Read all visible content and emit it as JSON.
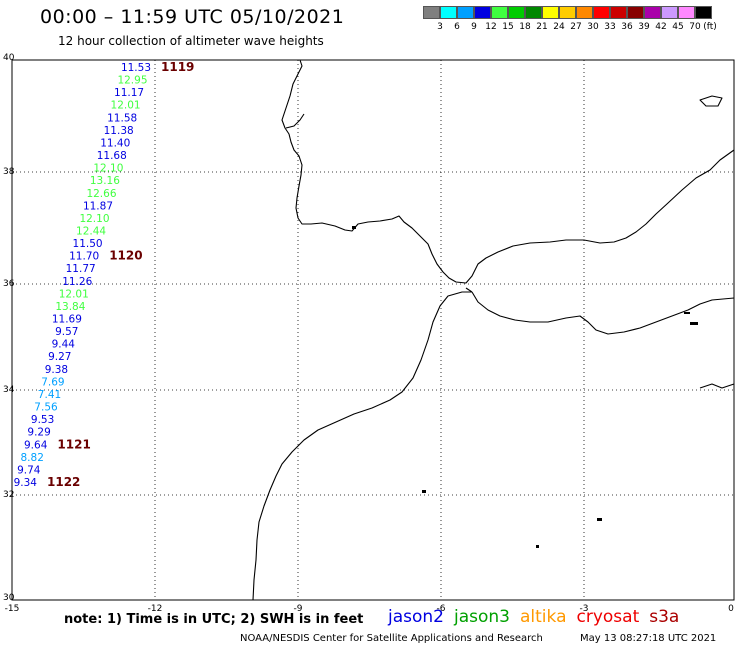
{
  "header": {
    "title": "00:00 – 11:59 UTC 05/10/2021",
    "subtitle": "12 hour collection of altimeter wave heights"
  },
  "colorbar": {
    "unit": "(ft)",
    "bins": [
      {
        "label": "3",
        "color": "#7f7f7f"
      },
      {
        "label": "6",
        "color": "#00ffff"
      },
      {
        "label": "9",
        "color": "#00a0ff"
      },
      {
        "label": "12",
        "color": "#0000e0"
      },
      {
        "label": "15",
        "color": "#40ff40"
      },
      {
        "label": "18",
        "color": "#00cc00"
      },
      {
        "label": "21",
        "color": "#008800"
      },
      {
        "label": "24",
        "color": "#ffff00"
      },
      {
        "label": "27",
        "color": "#ffcc00"
      },
      {
        "label": "30",
        "color": "#ff8800"
      },
      {
        "label": "33",
        "color": "#ff0000"
      },
      {
        "label": "36",
        "color": "#cc0000"
      },
      {
        "label": "39",
        "color": "#880000"
      },
      {
        "label": "42",
        "color": "#aa00aa"
      },
      {
        "label": "45",
        "color": "#cc99ff"
      },
      {
        "label": "70",
        "color": "#ff88ff"
      },
      {
        "label": "",
        "color": "#000000"
      }
    ]
  },
  "axes": {
    "lon_ticks": [
      "-15",
      "-12",
      "-9",
      "-6",
      "-3",
      "0"
    ],
    "lat_ticks": [
      "40",
      "38",
      "36",
      "34",
      "32",
      "30"
    ],
    "lon_range": [
      -15,
      0
    ],
    "lat_range": [
      30,
      40
    ]
  },
  "track": {
    "values": [
      {
        "v": "11.53",
        "c": "#0000e0"
      },
      {
        "v": "12.95",
        "c": "#40ff40"
      },
      {
        "v": "11.17",
        "c": "#0000e0"
      },
      {
        "v": "12.01",
        "c": "#40ff40"
      },
      {
        "v": "11.58",
        "c": "#0000e0"
      },
      {
        "v": "11.38",
        "c": "#0000e0"
      },
      {
        "v": "11.40",
        "c": "#0000e0"
      },
      {
        "v": "11.68",
        "c": "#0000e0"
      },
      {
        "v": "12.10",
        "c": "#40ff40"
      },
      {
        "v": "13.16",
        "c": "#40ff40"
      },
      {
        "v": "12.66",
        "c": "#40ff40"
      },
      {
        "v": "11.87",
        "c": "#0000e0"
      },
      {
        "v": "12.10",
        "c": "#40ff40"
      },
      {
        "v": "12.44",
        "c": "#40ff40"
      },
      {
        "v": "11.50",
        "c": "#0000e0"
      },
      {
        "v": "11.70",
        "c": "#0000e0"
      },
      {
        "v": "11.77",
        "c": "#0000e0"
      },
      {
        "v": "11.26",
        "c": "#0000e0"
      },
      {
        "v": "12.01",
        "c": "#40ff40"
      },
      {
        "v": "13.84",
        "c": "#40ff40"
      },
      {
        "v": "11.69",
        "c": "#0000e0"
      },
      {
        "v": "9.57",
        "c": "#0000e0"
      },
      {
        "v": "9.44",
        "c": "#0000e0"
      },
      {
        "v": "9.27",
        "c": "#0000e0"
      },
      {
        "v": "9.38",
        "c": "#0000e0"
      },
      {
        "v": "7.69",
        "c": "#00a0ff"
      },
      {
        "v": "7.41",
        "c": "#00a0ff"
      },
      {
        "v": "7.56",
        "c": "#00a0ff"
      },
      {
        "v": "9.53",
        "c": "#0000e0"
      },
      {
        "v": "9.29",
        "c": "#0000e0"
      },
      {
        "v": "9.64",
        "c": "#0000e0"
      },
      {
        "v": "8.82",
        "c": "#00a0ff"
      },
      {
        "v": "9.74",
        "c": "#0000e0"
      },
      {
        "v": "9.34",
        "c": "#0000e0"
      }
    ],
    "pass_labels": [
      "1119",
      "1120",
      "1121",
      "1122"
    ]
  },
  "footer": {
    "note": "note: 1) Time is in UTC; 2) SWH is in feet",
    "satellites": [
      {
        "name": "jason2",
        "color": "#0000e0"
      },
      {
        "name": "jason3",
        "color": "#00a000"
      },
      {
        "name": "altika",
        "color": "#ff9900"
      },
      {
        "name": "cryosat",
        "color": "#ee0000"
      },
      {
        "name": "s3a",
        "color": "#aa0000"
      }
    ],
    "credit": "NOAA/NESDIS Center for Satellite Applications and Research",
    "timestamp": "May 13 08:27:18 UTC 2021"
  }
}
